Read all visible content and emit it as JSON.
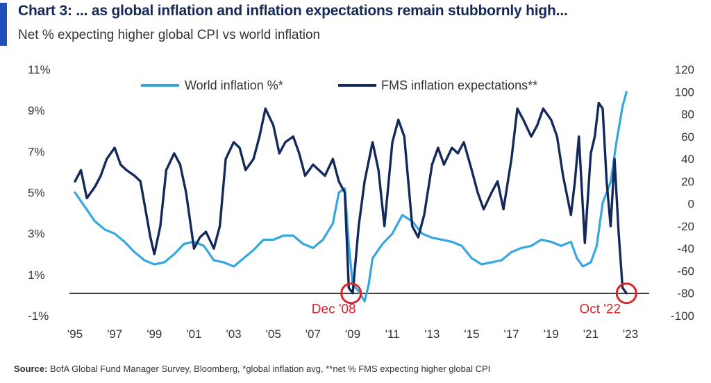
{
  "header": {
    "title": "Chart 3: ... as global inflation and inflation expectations remain stubbornly high...",
    "subtitle": "Net % expecting higher global CPI vs world inflation"
  },
  "source": {
    "label": "Source:",
    "text": "BofA Global Fund Manager Survey, Bloomberg, *global inflation avg, **net % FMS expecting higher global CPI"
  },
  "colors": {
    "world_inflation": "#35a7de",
    "fms_expectations": "#14295a",
    "annotation": "#d6262a",
    "baseline": "#000000",
    "accent": "#1f4fb8"
  },
  "chart_data": {
    "type": "line",
    "x_unit": "year",
    "x_tick_labels": [
      "'95",
      "'97",
      "'99",
      "'01",
      "'03",
      "'05",
      "'07",
      "'09",
      "'11",
      "'13",
      "'15",
      "'17",
      "'19",
      "'21",
      "'23"
    ],
    "x_range": [
      1995,
      2023.2
    ],
    "y_left_ticks": [
      "11%",
      "9%",
      "7%",
      "5%",
      "3%",
      "1%",
      "-1%"
    ],
    "y_left_range": [
      -1,
      11
    ],
    "y_right_ticks": [
      "120",
      "100",
      "80",
      "60",
      "40",
      "20",
      "0",
      "-20",
      "-40",
      "-60",
      "-80",
      "-100"
    ],
    "y_right_range": [
      -100,
      120
    ],
    "legend_position": "top",
    "series": [
      {
        "name": "World inflation %*",
        "axis": "left",
        "color": "#35a7de",
        "x": [
          1995,
          1995.5,
          1996,
          1996.5,
          1997,
          1997.5,
          1998,
          1998.5,
          1999,
          1999.5,
          2000,
          2000.5,
          2001,
          2001.5,
          2002,
          2002.5,
          2003,
          2003.5,
          2004,
          2004.5,
          2005,
          2005.5,
          2006,
          2006.5,
          2007,
          2007.5,
          2008,
          2008.3,
          2008.6,
          2008.8,
          2009,
          2009.3,
          2009.6,
          2009.8,
          2010,
          2010.5,
          2011,
          2011.5,
          2012,
          2012.5,
          2013,
          2013.5,
          2014,
          2014.5,
          2015,
          2015.5,
          2016,
          2016.5,
          2017,
          2017.5,
          2018,
          2018.5,
          2019,
          2019.5,
          2020,
          2020.3,
          2020.6,
          2021,
          2021.3,
          2021.6,
          2022,
          2022.3,
          2022.6,
          2022.8
        ],
        "values": [
          5.0,
          4.3,
          3.6,
          3.2,
          3.0,
          2.6,
          2.1,
          1.7,
          1.5,
          1.6,
          2.0,
          2.5,
          2.6,
          2.4,
          1.7,
          1.6,
          1.4,
          1.8,
          2.2,
          2.7,
          2.7,
          2.9,
          2.9,
          2.5,
          2.3,
          2.7,
          3.5,
          5.0,
          5.2,
          2.5,
          0.5,
          0.2,
          -0.3,
          0.5,
          1.8,
          2.5,
          3.0,
          3.9,
          3.6,
          3.0,
          2.8,
          2.7,
          2.6,
          2.4,
          1.8,
          1.5,
          1.6,
          1.7,
          2.1,
          2.3,
          2.4,
          2.7,
          2.6,
          2.4,
          2.6,
          1.8,
          1.4,
          1.6,
          2.4,
          4.5,
          5.5,
          7.5,
          9.2,
          9.9
        ]
      },
      {
        "name": "FMS inflation expectations**",
        "axis": "right",
        "color": "#14295a",
        "x": [
          1995,
          1995.3,
          1995.6,
          1996,
          1996.3,
          1996.6,
          1997,
          1997.3,
          1997.6,
          1998,
          1998.3,
          1998.6,
          1998.8,
          1999,
          1999.3,
          1999.6,
          2000,
          2000.3,
          2000.6,
          2001,
          2001.3,
          2001.6,
          2002,
          2002.3,
          2002.6,
          2003,
          2003.3,
          2003.6,
          2004,
          2004.3,
          2004.6,
          2005,
          2005.3,
          2005.6,
          2006,
          2006.3,
          2006.6,
          2007,
          2007.3,
          2007.6,
          2008,
          2008.3,
          2008.6,
          2008.8,
          2009,
          2009.3,
          2009.6,
          2010,
          2010.3,
          2010.6,
          2011,
          2011.3,
          2011.6,
          2012,
          2012.3,
          2012.6,
          2013,
          2013.3,
          2013.6,
          2014,
          2014.3,
          2014.6,
          2015,
          2015.3,
          2015.6,
          2016,
          2016.3,
          2016.6,
          2017,
          2017.3,
          2017.6,
          2018,
          2018.3,
          2018.6,
          2019,
          2019.3,
          2019.6,
          2020,
          2020.2,
          2020.4,
          2020.7,
          2021,
          2021.2,
          2021.4,
          2021.6,
          2021.8,
          2022,
          2022.2,
          2022.4,
          2022.6,
          2022.8
        ],
        "values": [
          20,
          30,
          5,
          15,
          25,
          40,
          50,
          35,
          30,
          25,
          20,
          -10,
          -30,
          -45,
          -20,
          30,
          45,
          35,
          10,
          -40,
          -30,
          -25,
          -40,
          -20,
          40,
          55,
          50,
          30,
          40,
          60,
          85,
          70,
          45,
          55,
          60,
          45,
          25,
          35,
          30,
          25,
          40,
          20,
          10,
          -75,
          -80,
          -20,
          20,
          55,
          30,
          -20,
          55,
          75,
          60,
          -20,
          -30,
          -10,
          35,
          50,
          35,
          50,
          45,
          55,
          30,
          10,
          -5,
          10,
          20,
          -5,
          40,
          85,
          75,
          60,
          70,
          85,
          75,
          60,
          25,
          -10,
          20,
          60,
          -35,
          45,
          60,
          90,
          85,
          20,
          -20,
          40,
          -25,
          -75,
          -80
        ]
      }
    ],
    "annotations": [
      {
        "label": "Dec '08",
        "x": 2008.92,
        "y": -80,
        "axis": "right"
      },
      {
        "label": "Oct '22",
        "x": 2022.8,
        "y": -80,
        "axis": "right"
      }
    ],
    "reference_line": {
      "axis": "right",
      "value": -80
    }
  }
}
